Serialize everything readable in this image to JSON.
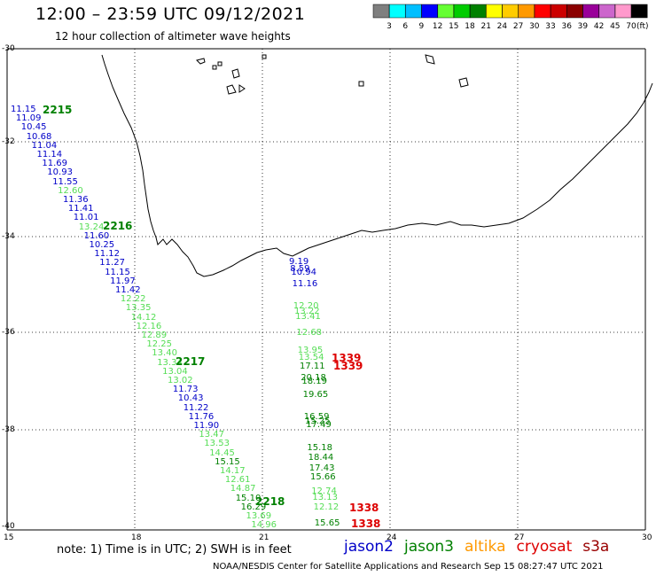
{
  "header": {
    "title": "12:00 – 23:59 UTC 09/12/2021",
    "subtitle": "12 hour collection of altimeter wave heights"
  },
  "scale": {
    "unit": "(ft)",
    "bins": [
      {
        "color": "#7f7f7f",
        "label": "3"
      },
      {
        "color": "#00ffff",
        "label": "6"
      },
      {
        "color": "#00bfff",
        "label": "9"
      },
      {
        "color": "#0000ff",
        "label": "12"
      },
      {
        "color": "#66ff33",
        "label": "15"
      },
      {
        "color": "#00cc00",
        "label": "18"
      },
      {
        "color": "#008000",
        "label": "21"
      },
      {
        "color": "#ffff00",
        "label": "24"
      },
      {
        "color": "#ffcc00",
        "label": "27"
      },
      {
        "color": "#ff9900",
        "label": "30"
      },
      {
        "color": "#ff0000",
        "label": "33"
      },
      {
        "color": "#cc0000",
        "label": "36"
      },
      {
        "color": "#8b0000",
        "label": "39"
      },
      {
        "color": "#990099",
        "label": "42"
      },
      {
        "color": "#cc66cc",
        "label": "45"
      },
      {
        "color": "#ff99cc",
        "label": "70"
      },
      {
        "color": "#000000",
        "label": ""
      }
    ]
  },
  "axes": {
    "lon_labels": [
      "15",
      "18",
      "21",
      "24",
      "27",
      "30"
    ],
    "lat_labels": [
      "-30",
      "-32",
      "-34",
      "-36",
      "-38",
      "-40"
    ]
  },
  "colors": {
    "jason2": "#0000c8",
    "jason3": "#008000",
    "jason3_light": "#55dd55",
    "altika": "#ff9900",
    "cryosat": "#dd0000",
    "s3a": "#990000"
  },
  "passes": [
    {
      "text": "2215",
      "cls": "jason3"
    },
    {
      "text": "2216",
      "cls": "jason3"
    },
    {
      "text": "2217",
      "cls": "jason3"
    },
    {
      "text": "2218",
      "cls": "jason3"
    },
    {
      "text": "1339",
      "cls": "cryosat"
    },
    {
      "text": "1339",
      "cls": "cryosat"
    },
    {
      "text": "1338",
      "cls": "cryosat"
    },
    {
      "text": "1338",
      "cls": "cryosat"
    }
  ],
  "track_west": [
    {
      "v": "11.15",
      "c": "jason2"
    },
    {
      "v": "11.09",
      "c": "jason2"
    },
    {
      "v": "10.45",
      "c": "jason2"
    },
    {
      "v": "10.68",
      "c": "jason2"
    },
    {
      "v": "11.04",
      "c": "jason2"
    },
    {
      "v": "11.14",
      "c": "jason2"
    },
    {
      "v": "11.69",
      "c": "jason2"
    },
    {
      "v": "10.93",
      "c": "jason2"
    },
    {
      "v": "11.55",
      "c": "jason2"
    },
    {
      "v": "12.60",
      "c": "jason3_light"
    },
    {
      "v": "11.36",
      "c": "jason2"
    },
    {
      "v": "11.41",
      "c": "jason2"
    },
    {
      "v": "11.01",
      "c": "jason2"
    },
    {
      "v": "13.24",
      "c": "jason3_light"
    },
    {
      "v": "11.60",
      "c": "jason2"
    },
    {
      "v": "10.25",
      "c": "jason2"
    },
    {
      "v": "11.12",
      "c": "jason2"
    },
    {
      "v": "11.27",
      "c": "jason2"
    },
    {
      "v": "11.15",
      "c": "jason2"
    },
    {
      "v": "11.97",
      "c": "jason2"
    },
    {
      "v": "11.42",
      "c": "jason2"
    },
    {
      "v": "12.22",
      "c": "jason3_light"
    },
    {
      "v": "13.35",
      "c": "jason3_light"
    },
    {
      "v": "14.12",
      "c": "jason3_light"
    },
    {
      "v": "12.16",
      "c": "jason3_light"
    },
    {
      "v": "12.89",
      "c": "jason3_light"
    },
    {
      "v": "12.25",
      "c": "jason3_light"
    },
    {
      "v": "13.40",
      "c": "jason3_light"
    },
    {
      "v": "13.34",
      "c": "jason3_light"
    },
    {
      "v": "13.04",
      "c": "jason3_light"
    },
    {
      "v": "13.02",
      "c": "jason3_light"
    },
    {
      "v": "11.73",
      "c": "jason2"
    },
    {
      "v": "10.43",
      "c": "jason2"
    },
    {
      "v": "11.22",
      "c": "jason2"
    },
    {
      "v": "11.76",
      "c": "jason2"
    },
    {
      "v": "11.90",
      "c": "jason2"
    },
    {
      "v": "13.47",
      "c": "jason3_light"
    },
    {
      "v": "13.53",
      "c": "jason3_light"
    },
    {
      "v": "14.45",
      "c": "jason3_light"
    },
    {
      "v": "15.15",
      "c": "jason3"
    },
    {
      "v": "14.17",
      "c": "jason3_light"
    },
    {
      "v": "12.61",
      "c": "jason3_light"
    },
    {
      "v": "14.87",
      "c": "jason3_light"
    },
    {
      "v": "15.10",
      "c": "jason3"
    },
    {
      "v": "16.29",
      "c": "jason3"
    },
    {
      "v": "13.69",
      "c": "jason3_light"
    },
    {
      "v": "14.96",
      "c": "jason3_light"
    }
  ],
  "track_east": [
    {
      "v": "9.19",
      "c": "jason2"
    },
    {
      "v": "8.59",
      "c": "jason2"
    },
    {
      "v": "10.94",
      "c": "jason2"
    },
    {
      "v": "11.16",
      "c": "jason2"
    },
    {
      "v": "12.20",
      "c": "jason3_light"
    },
    {
      "v": "13.22",
      "c": "jason3_light"
    },
    {
      "v": "13.41",
      "c": "jason3_light"
    },
    {
      "v": "12.68",
      "c": "jason3_light"
    },
    {
      "v": "13.95",
      "c": "jason3_light"
    },
    {
      "v": "13.54",
      "c": "jason3_light"
    },
    {
      "v": "17.11",
      "c": "jason3"
    },
    {
      "v": "20.18",
      "c": "jason3"
    },
    {
      "v": "18.19",
      "c": "jason3"
    },
    {
      "v": "19.65",
      "c": "jason3"
    },
    {
      "v": "16.59",
      "c": "jason3"
    },
    {
      "v": "15.25",
      "c": "jason3"
    },
    {
      "v": "17.49",
      "c": "jason3"
    },
    {
      "v": "15.18",
      "c": "jason3"
    },
    {
      "v": "18.44",
      "c": "jason3"
    },
    {
      "v": "17.43",
      "c": "jason3"
    },
    {
      "v": "15.66",
      "c": "jason3"
    },
    {
      "v": "12.74",
      "c": "jason3_light"
    },
    {
      "v": "13.13",
      "c": "jason3_light"
    },
    {
      "v": "12.12",
      "c": "jason3_light"
    },
    {
      "v": "15.65",
      "c": "jason3"
    }
  ],
  "note": "note:  1) Time is in UTC;  2) SWH is in feet",
  "legend": [
    {
      "text": "jason2",
      "cls": "jason2"
    },
    {
      "text": "jason3",
      "cls": "jason3"
    },
    {
      "text": "altika",
      "cls": "altika"
    },
    {
      "text": "cryosat",
      "cls": "cryosat"
    },
    {
      "text": "s3a",
      "cls": "s3a"
    }
  ],
  "footer": "NOAA/NESDIS Center for Satellite Applications and Research    Sep 15 08:27:47 UTC 2021"
}
